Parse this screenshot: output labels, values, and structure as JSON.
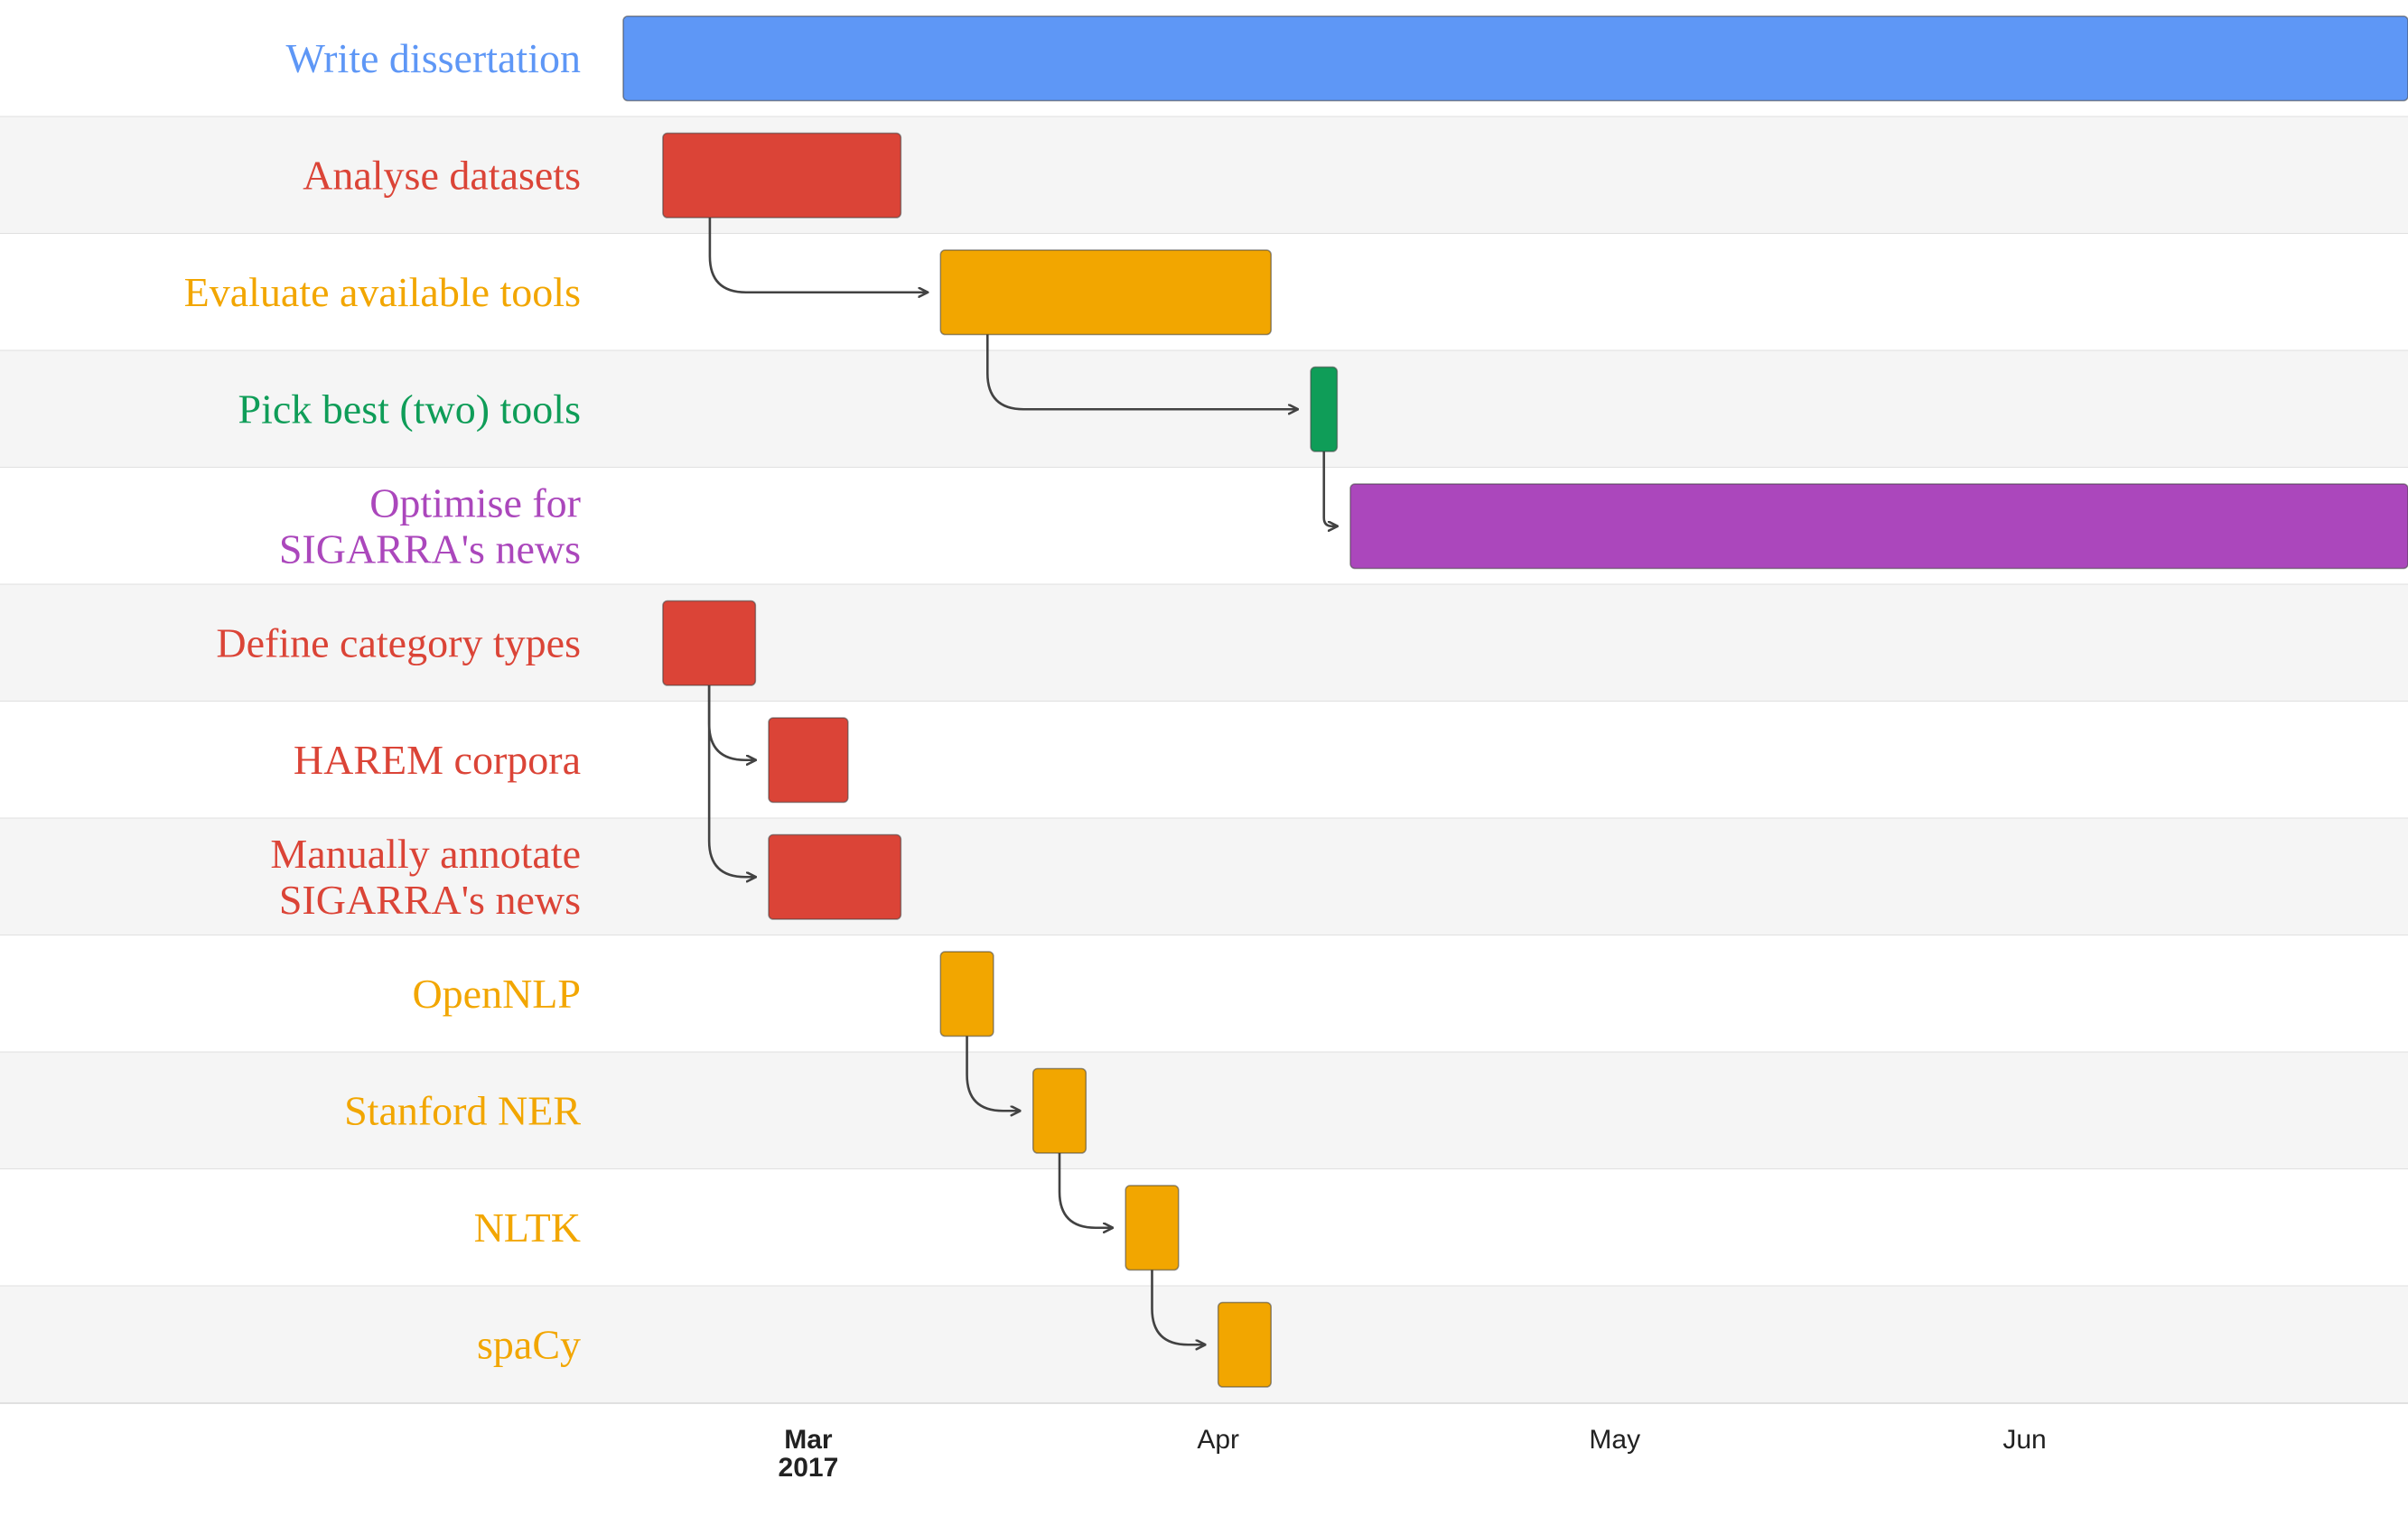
{
  "chart_data": {
    "type": "gantt",
    "tasks": [
      {
        "id": "dissertation",
        "label_lines": [
          "Write dissertation"
        ],
        "start": "2017-02-15",
        "end": "2017-06-30",
        "color": "#5e97f6",
        "depends_on": null
      },
      {
        "id": "analyse",
        "label_lines": [
          "Analyse datasets"
        ],
        "start": "2017-02-18",
        "end": "2017-03-08",
        "color": "#db4437",
        "depends_on": null
      },
      {
        "id": "evaluate",
        "label_lines": [
          "Evaluate available tools"
        ],
        "start": "2017-03-11",
        "end": "2017-04-05",
        "color": "#f2a600",
        "depends_on": "analyse"
      },
      {
        "id": "pick",
        "label_lines": [
          "Pick best (two) tools"
        ],
        "start": "2017-04-08",
        "end": "2017-04-10",
        "color": "#0f9d58",
        "depends_on": "evaluate"
      },
      {
        "id": "optimise",
        "label_lines": [
          "Optimise for",
          "SIGARRA's news"
        ],
        "start": "2017-04-11",
        "end": "2017-06-30",
        "color": "#ab47bc",
        "depends_on": "pick"
      },
      {
        "id": "define",
        "label_lines": [
          "Define category types"
        ],
        "start": "2017-02-18",
        "end": "2017-02-25",
        "color": "#db4437",
        "depends_on": null
      },
      {
        "id": "harem",
        "label_lines": [
          "HAREM corpora"
        ],
        "start": "2017-02-26",
        "end": "2017-03-04",
        "color": "#db4437",
        "depends_on": "define"
      },
      {
        "id": "annotate",
        "label_lines": [
          "Manually annotate",
          "SIGARRA's news"
        ],
        "start": "2017-02-26",
        "end": "2017-03-08",
        "color": "#db4437",
        "depends_on": "define"
      },
      {
        "id": "opennlp",
        "label_lines": [
          "OpenNLP"
        ],
        "start": "2017-03-11",
        "end": "2017-03-15",
        "color": "#f2a600",
        "depends_on": null
      },
      {
        "id": "stanford",
        "label_lines": [
          "Stanford NER"
        ],
        "start": "2017-03-18",
        "end": "2017-03-22",
        "color": "#f2a600",
        "depends_on": "opennlp"
      },
      {
        "id": "nltk",
        "label_lines": [
          "NLTK"
        ],
        "start": "2017-03-25",
        "end": "2017-03-29",
        "color": "#f2a600",
        "depends_on": "stanford"
      },
      {
        "id": "spacy",
        "label_lines": [
          "spaCy"
        ],
        "start": "2017-04-01",
        "end": "2017-04-05",
        "color": "#f2a600",
        "depends_on": "nltk"
      }
    ],
    "x_axis": {
      "range": [
        "2017-02-15",
        "2017-06-30"
      ],
      "ticks": [
        {
          "date": "2017-03-01",
          "label": "Mar",
          "sublabel": "2017"
        },
        {
          "date": "2017-04-01",
          "label": "Apr",
          "sublabel": ""
        },
        {
          "date": "2017-05-01",
          "label": "May",
          "sublabel": ""
        },
        {
          "date": "2017-06-01",
          "label": "Jun",
          "sublabel": ""
        }
      ]
    },
    "row_colors": [
      "#ffffff",
      "#f5f5f5"
    ],
    "row_border_color": "#e0e0e0",
    "arrow_color": "#424242"
  }
}
